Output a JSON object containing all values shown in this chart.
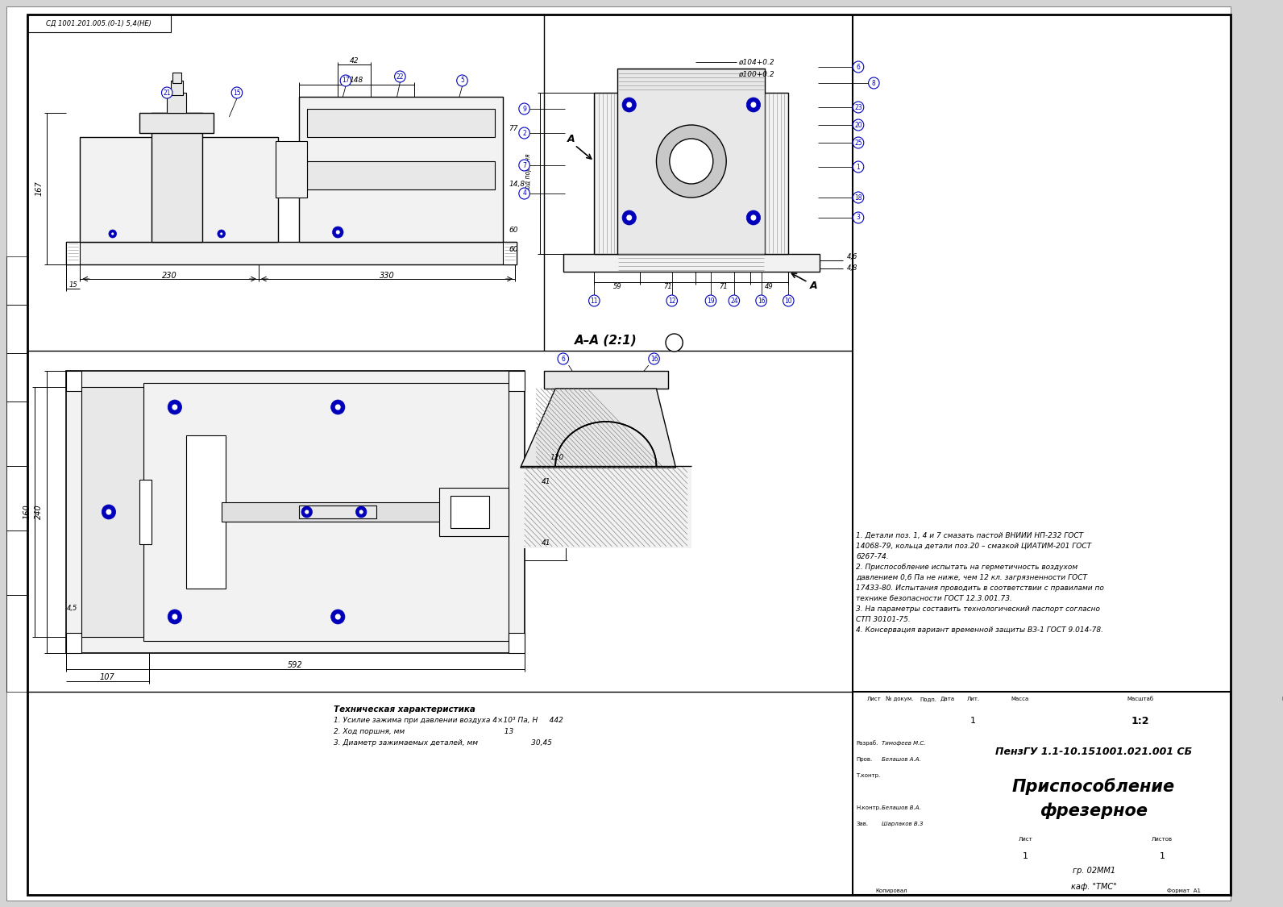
{
  "bg_color": "#d4d4d4",
  "paper_color": "#ffffff",
  "line_color": "#000000",
  "blue_color": "#0000bb",
  "gray_fill": "#e8e8e8",
  "light_gray": "#f2f2f2",
  "hatch_color": "#888888",
  "stamp_top": "СД 1001.201.005.(0-1) 5,4(НЕ)",
  "title_block": {
    "title_line1": "ПензГУ 1.1-10.151001.021.001 СБ",
    "title_line2": "Приспособление",
    "title_line3": "фрезерное",
    "dept": "гр. 02ММ1",
    "dept2": "каф. \"ТМС\"",
    "sheet_num": "1",
    "sheets_num": "1",
    "scale_val": "1:2",
    "format_val": "А1"
  },
  "tech_specs_title": "Техническая характеристика",
  "tech_specs": [
    "1. Усилие зажима при давлении воздуха 4×10³ Па, Н     442",
    "2. Ход поршня, мм                                           13",
    "3. Диаметр зажимаемых деталей, мм                       30,45"
  ],
  "notes": [
    "1. Детали поз. 1, 4 и 7 смазать пастой ВНИИИ НП-232 ГОСТ",
    "14068-79, кольца детали поз.20 – смазкой ЦИАТИМ-201 ГОСТ",
    "6267-74.",
    "2. Приспособление испытать на герметичность воздухом",
    "давлением 0,6 Па не ниже, чем 12 кл. загрязненности ГОСТ",
    "17433-80. Испытания проводить в соответствии с правилами по",
    "технике безопасности ГОСТ 12.3.001.73.",
    "3. На параметры составить технологический паспорт согласно",
    "СТП 30101-75.",
    "4. Консервация вариант временной защиты ВЗ-1 ГОСТ 9.014-78."
  ],
  "section_label": "А–А (2:1)"
}
